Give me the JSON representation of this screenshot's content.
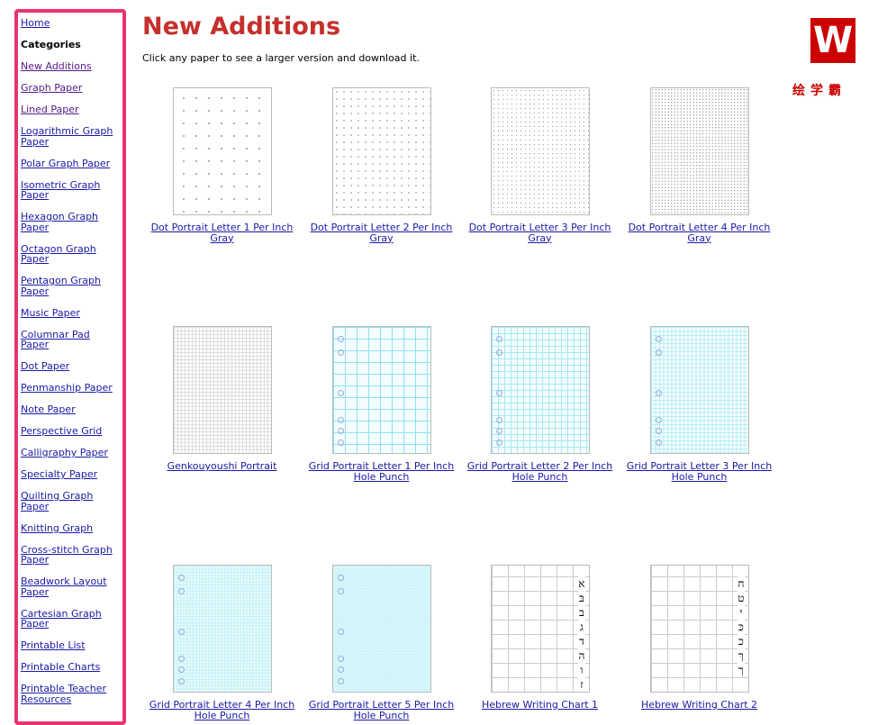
{
  "sidebar": {
    "home": "Home",
    "categories_heading": "Categories",
    "items": [
      "New Additions",
      "Graph Paper",
      "Lined Paper",
      "Logarithmic Graph Paper",
      "Polar Graph Paper",
      "Isometric Graph Paper",
      "Hexagon Graph Paper",
      "Octagon Graph Paper",
      "Pentagon Graph Paper",
      "Music Paper",
      "Columnar Pad Paper",
      "Dot Paper",
      "Penmanship Paper",
      "Note Paper",
      "Perspective Grid",
      "Calligraphy Paper",
      "Specialty Paper",
      "Quilting Graph Paper",
      "Knitting Graph",
      "Cross-stitch Graph Paper",
      "Beadwork Layout Paper",
      "Cartesian Graph Paper",
      "Printable List",
      "Printable Charts",
      "Printable Teacher Resources"
    ],
    "border_color": "#e9336e"
  },
  "main": {
    "title": "New Additions",
    "title_color": "#c4302b",
    "intro": "Click any paper to see a larger version and download it.",
    "papers": [
      {
        "caption": "Dot Portrait Letter 1 Per Inch Gray",
        "style": "dots1"
      },
      {
        "caption": "Dot Portrait Letter 2 Per Inch Gray",
        "style": "dots2"
      },
      {
        "caption": "Dot Portrait Letter 3 Per Inch Gray",
        "style": "dots3"
      },
      {
        "caption": "Dot Portrait Letter 4 Per Inch Gray",
        "style": "dots4"
      },
      {
        "caption": "Genkouyoushi Portrait",
        "style": "genko"
      },
      {
        "caption": "Grid Portrait Letter 1 Per Inch Hole Punch",
        "style": "g1"
      },
      {
        "caption": "Grid Portrait Letter 2 Per Inch Hole Punch",
        "style": "g2"
      },
      {
        "caption": "Grid Portrait Letter 3 Per Inch Hole Punch",
        "style": "g3"
      },
      {
        "caption": "Grid Portrait Letter 4 Per Inch Hole Punch",
        "style": "g4"
      },
      {
        "caption": "Grid Portrait Letter 5 Per Inch Hole Punch",
        "style": "g5"
      },
      {
        "caption": "Hebrew Writing Chart 1",
        "style": "heb",
        "letters": [
          "א",
          "בּ",
          "ב",
          "ג",
          "ד",
          "ה",
          "ו",
          "ז"
        ]
      },
      {
        "caption": "Hebrew Writing Chart 2",
        "style": "heb",
        "letters": [
          "ח",
          "ט",
          "י",
          "כּ",
          "כ",
          "ךּ",
          "ך"
        ]
      }
    ]
  },
  "watermark": {
    "logo": "W",
    "text": "绘学霸"
  }
}
